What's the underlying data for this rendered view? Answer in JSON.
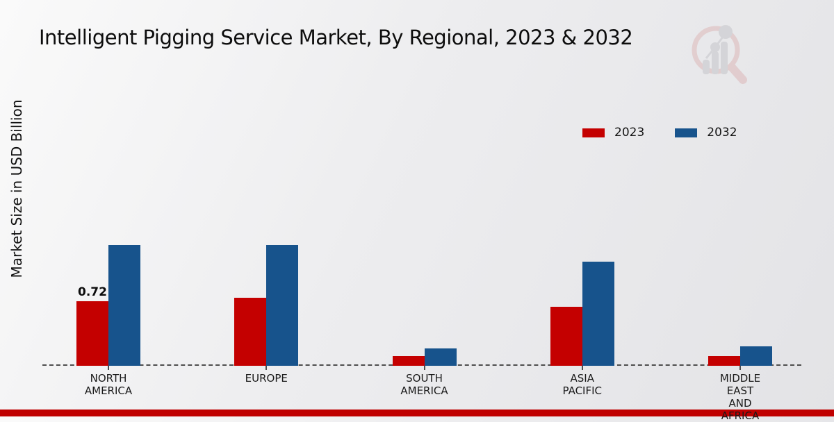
{
  "title": "Intelligent Pigging Service Market, By Regional, 2023 & 2032",
  "y_axis_label": "Market Size in USD Billion",
  "legend": [
    {
      "label": "2023",
      "color": "#c40000"
    },
    {
      "label": "2032",
      "color": "#17538c"
    }
  ],
  "footer_color": "#c00000",
  "watermark_icon": "market-research-future-logo",
  "chart_data": {
    "type": "bar",
    "title": "Intelligent Pigging Service Market, By Regional, 2023 & 2032",
    "xlabel": "",
    "ylabel": "Market Size in USD Billion",
    "categories": [
      "NORTH AMERICA",
      "EUROPE",
      "SOUTH AMERICA",
      "ASIA PACIFIC",
      "MIDDLE EAST AND AFRICA"
    ],
    "category_lines": [
      [
        "NORTH",
        "AMERICA"
      ],
      [
        "EUROPE"
      ],
      [
        "SOUTH",
        "AMERICA"
      ],
      [
        "ASIA",
        "PACIFIC"
      ],
      [
        "MIDDLE",
        "EAST",
        "AND",
        "AFRICA"
      ]
    ],
    "series": [
      {
        "name": "2023",
        "color": "#c40000",
        "values": [
          0.72,
          0.76,
          0.11,
          0.66,
          0.11
        ]
      },
      {
        "name": "2032",
        "color": "#17538c",
        "values": [
          1.35,
          1.35,
          0.19,
          1.16,
          0.22
        ]
      }
    ],
    "bar_labels": [
      {
        "series_index": 0,
        "category_index": 0,
        "text": "0.72"
      }
    ],
    "ylim": [
      0,
      1.6
    ],
    "grid": false,
    "legend_position": "upper-right",
    "baseline": "dashed"
  }
}
